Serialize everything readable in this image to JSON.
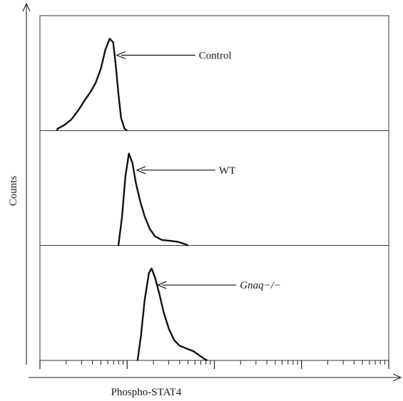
{
  "chart_data": {
    "type": "histogram-overlay-stack",
    "xlabel": "Phospho-STAT4",
    "ylabel": "Counts",
    "x_scale": "log",
    "x_decades": 4,
    "panels": [
      {
        "label": "Control",
        "label_italic": false,
        "peak_x": 0.8,
        "profile": [
          [
            0.2,
            0.02
          ],
          [
            0.28,
            0.06
          ],
          [
            0.36,
            0.12
          ],
          [
            0.44,
            0.22
          ],
          [
            0.52,
            0.34
          ],
          [
            0.58,
            0.42
          ],
          [
            0.64,
            0.52
          ],
          [
            0.7,
            0.68
          ],
          [
            0.75,
            0.88
          ],
          [
            0.8,
            1.0
          ],
          [
            0.84,
            0.96
          ],
          [
            0.87,
            0.7
          ],
          [
            0.9,
            0.4
          ],
          [
            0.93,
            0.14
          ],
          [
            0.97,
            0.02
          ],
          [
            1.0,
            0.0
          ]
        ]
      },
      {
        "label": "WT",
        "label_italic": false,
        "peak_x": 1.03,
        "profile": [
          [
            0.9,
            0.0
          ],
          [
            0.94,
            0.3
          ],
          [
            0.98,
            0.75
          ],
          [
            1.02,
            1.0
          ],
          [
            1.06,
            0.9
          ],
          [
            1.1,
            0.68
          ],
          [
            1.15,
            0.48
          ],
          [
            1.2,
            0.32
          ],
          [
            1.26,
            0.18
          ],
          [
            1.32,
            0.1
          ],
          [
            1.4,
            0.06
          ],
          [
            1.5,
            0.05
          ],
          [
            1.58,
            0.04
          ],
          [
            1.65,
            0.02
          ],
          [
            1.7,
            0.0
          ]
        ]
      },
      {
        "label": "Gnaq−/−",
        "label_italic": true,
        "peak_x": 1.27,
        "profile": [
          [
            1.12,
            0.0
          ],
          [
            1.16,
            0.28
          ],
          [
            1.2,
            0.65
          ],
          [
            1.25,
            0.95
          ],
          [
            1.28,
            1.0
          ],
          [
            1.32,
            0.9
          ],
          [
            1.37,
            0.72
          ],
          [
            1.42,
            0.52
          ],
          [
            1.48,
            0.34
          ],
          [
            1.54,
            0.22
          ],
          [
            1.6,
            0.16
          ],
          [
            1.68,
            0.13
          ],
          [
            1.76,
            0.1
          ],
          [
            1.82,
            0.06
          ],
          [
            1.88,
            0.02
          ],
          [
            1.92,
            0.0
          ]
        ]
      }
    ]
  }
}
